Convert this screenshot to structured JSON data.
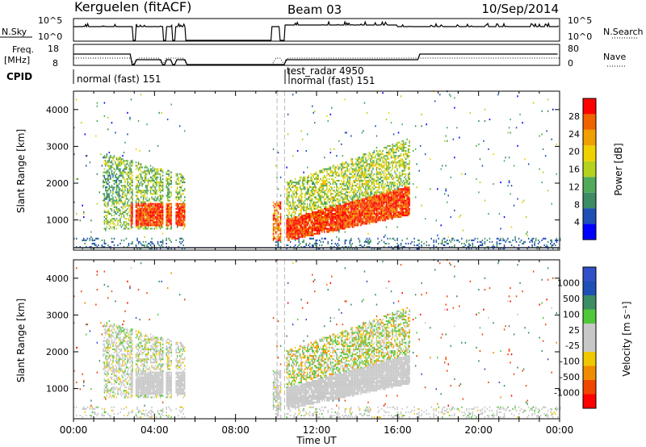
{
  "header": {
    "station": "Kerguelen (fitACF)",
    "beam": "Beam 03",
    "date": "10/Sep/2014"
  },
  "top_panels": {
    "nsky_label": "N.Sky",
    "nsearch_label": "N.Search",
    "nsky_ticks": [
      "10^5",
      "10^0"
    ],
    "nsearch_ticks": [
      "10^5",
      "10^0"
    ],
    "freq_label_1": "Freq.",
    "freq_label_2": "[MHz]",
    "freq_ticks": [
      "18",
      "8"
    ],
    "nave_label": "Nave",
    "nave_ticks": [
      "80",
      "0"
    ],
    "cpid_label": "CPID",
    "cpid_entries": [
      {
        "text": "normal (fast) 151",
        "start_hour": 0.0
      },
      {
        "text": "test_radar 4950",
        "start_hour": 10.4
      },
      {
        "text": "normal (fast) 151",
        "start_hour": 10.8
      }
    ]
  },
  "colors": {
    "power_scale": [
      "#0000ff",
      "#1e4fb4",
      "#3c8c64",
      "#50aa5a",
      "#b4d21e",
      "#f0d200",
      "#f0a000",
      "#f06400",
      "#ff0000"
    ],
    "velocity_scale": [
      "#ff0000",
      "#f04600",
      "#f08c00",
      "#f0c800",
      "#c8c8c8",
      "#c8c8c8",
      "#50c83c",
      "#3c8c64",
      "#1e4fb4",
      "#3250c8"
    ]
  },
  "chart_data": [
    {
      "type": "heatmap",
      "name": "power",
      "ylabel": "Slant Range [km]",
      "xlabel": "Time UT",
      "ylim": [
        180,
        4500
      ],
      "xlim": [
        0,
        24
      ],
      "yticks": [
        1000,
        2000,
        3000,
        4000
      ],
      "xticks": [
        "00:00",
        "04:00",
        "08:00",
        "12:00",
        "16:00",
        "20:00",
        "00:00"
      ],
      "colorbar_label": "Power [dB]",
      "colorbar_ticks": [
        "4",
        "8",
        "12",
        "16",
        "20",
        "24",
        "28"
      ],
      "colorbar_range": [
        0,
        32
      ]
    },
    {
      "type": "heatmap",
      "name": "velocity",
      "ylabel": "Slant Range [km]",
      "xlabel": "Time UT",
      "ylim": [
        180,
        4500
      ],
      "xlim": [
        0,
        24
      ],
      "yticks": [
        1000,
        2000,
        3000,
        4000
      ],
      "xticks": [
        "00:00",
        "04:00",
        "08:00",
        "12:00",
        "16:00",
        "20:00",
        "00:00"
      ],
      "colorbar_label": "Velocity [m s⁻¹]",
      "colorbar_ticks": [
        "1000",
        "500",
        "100",
        "25",
        "-25",
        "-100",
        "-500",
        "-1000"
      ]
    }
  ]
}
